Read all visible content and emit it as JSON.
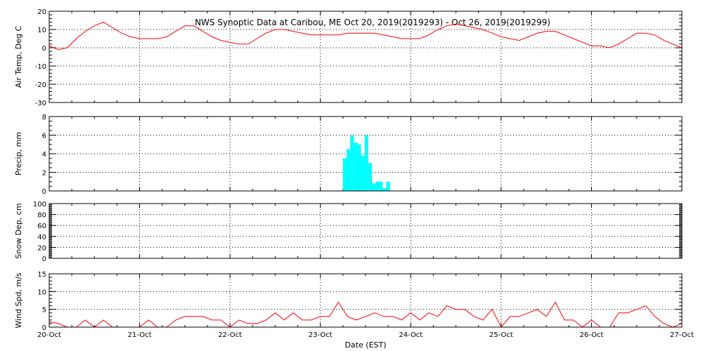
{
  "title": "NWS Synoptic Data at Caribou, ME   Oct 20, 2019(2019293) - Oct 26, 2019(2019299)",
  "xlabel": "Date (EST)",
  "x_tick_labels": [
    "20-Oct",
    "21-Oct",
    "22-Oct",
    "23-Oct",
    "24-Oct",
    "25-Oct",
    "26-Oct",
    "27-Oct"
  ],
  "colors": {
    "line": "#ff0000",
    "bar": "#00ffff",
    "grid": "#000000"
  },
  "chart_data": [
    {
      "type": "line",
      "name": "air-temp",
      "ylabel": "Air Temp, Deg C",
      "ylim": [
        -30,
        20
      ],
      "yticks": [
        -30,
        -20,
        -10,
        0,
        10,
        20
      ],
      "xlim": [
        0,
        7
      ],
      "x": [
        0,
        0.1,
        0.2,
        0.3,
        0.4,
        0.5,
        0.6,
        0.7,
        0.8,
        0.9,
        1.0,
        1.1,
        1.2,
        1.3,
        1.4,
        1.5,
        1.6,
        1.7,
        1.8,
        1.9,
        2.0,
        2.1,
        2.2,
        2.3,
        2.4,
        2.5,
        2.6,
        2.7,
        2.8,
        2.9,
        3.0,
        3.1,
        3.2,
        3.3,
        3.4,
        3.5,
        3.6,
        3.7,
        3.8,
        3.9,
        4.0,
        4.1,
        4.2,
        4.3,
        4.4,
        4.5,
        4.6,
        4.7,
        4.8,
        4.9,
        5.0,
        5.1,
        5.2,
        5.3,
        5.4,
        5.5,
        5.6,
        5.7,
        5.8,
        5.9,
        6.0,
        6.1,
        6.2,
        6.3,
        6.4,
        6.5,
        6.6,
        6.7,
        6.8,
        6.9,
        7.0
      ],
      "y": [
        1,
        -1,
        0,
        5,
        9,
        12,
        14,
        11,
        8,
        6,
        5,
        5,
        5,
        6,
        9,
        12,
        12,
        9,
        6,
        4,
        3,
        2,
        2,
        5,
        8,
        10,
        10,
        9,
        8,
        7,
        7,
        7,
        7,
        8,
        8,
        8,
        8,
        7,
        6,
        5,
        5,
        5,
        7,
        10,
        12,
        13,
        12,
        11,
        10,
        8,
        6,
        5,
        4,
        6,
        8,
        9,
        9,
        7,
        5,
        3,
        1,
        1,
        0,
        2,
        5,
        8,
        8,
        7,
        4,
        2,
        0
      ]
    },
    {
      "type": "bar",
      "name": "precip",
      "ylabel": "Precip, mm",
      "ylim": [
        0,
        8
      ],
      "yticks": [
        0,
        2,
        4,
        6,
        8
      ],
      "xlim": [
        0,
        7
      ],
      "bar_width": 0.04,
      "x": [
        3.25,
        3.29,
        3.33,
        3.37,
        3.41,
        3.45,
        3.49,
        3.53,
        3.57,
        3.61,
        3.65,
        3.69,
        3.73,
        3.77
      ],
      "values": [
        3.5,
        4.5,
        6,
        5.2,
        5,
        3.8,
        6,
        3,
        0.8,
        1,
        1,
        0.3,
        1,
        0
      ]
    },
    {
      "type": "line",
      "name": "snow-depth",
      "ylabel": "Snow Dep, cm",
      "ylim": [
        0,
        100
      ],
      "yticks": [
        0,
        20,
        40,
        60,
        80,
        100
      ],
      "xlim": [
        0,
        7
      ],
      "x": [],
      "y": []
    },
    {
      "type": "line",
      "name": "wind-speed",
      "ylabel": "Wind Spd, m/s",
      "ylim": [
        0,
        15
      ],
      "yticks": [
        0,
        5,
        10,
        15
      ],
      "xlim": [
        0,
        7
      ],
      "x": [
        0,
        0.1,
        0.2,
        0.3,
        0.4,
        0.5,
        0.6,
        0.7,
        0.8,
        0.9,
        1.0,
        1.1,
        1.2,
        1.3,
        1.4,
        1.5,
        1.6,
        1.7,
        1.8,
        1.9,
        2.0,
        2.1,
        2.2,
        2.3,
        2.4,
        2.5,
        2.6,
        2.7,
        2.8,
        2.9,
        3.0,
        3.1,
        3.2,
        3.3,
        3.4,
        3.5,
        3.6,
        3.7,
        3.8,
        3.9,
        4.0,
        4.1,
        4.2,
        4.3,
        4.4,
        4.5,
        4.6,
        4.7,
        4.8,
        4.9,
        5.0,
        5.1,
        5.2,
        5.3,
        5.4,
        5.5,
        5.6,
        5.7,
        5.8,
        5.9,
        6.0,
        6.1,
        6.2,
        6.3,
        6.4,
        6.5,
        6.6,
        6.7,
        6.8,
        6.9,
        7.0
      ],
      "y": [
        1.5,
        1,
        0,
        0,
        2,
        0,
        2,
        0,
        0,
        0,
        0,
        2,
        0,
        0,
        2,
        3,
        3,
        3,
        2,
        2,
        0,
        2,
        1,
        1,
        2,
        4,
        2,
        4,
        2,
        2,
        3,
        3,
        7,
        3,
        2,
        3,
        4,
        3,
        3,
        2,
        4,
        2,
        4,
        3,
        6,
        5,
        5,
        3,
        2,
        5,
        0,
        3,
        3,
        4,
        5,
        3,
        7,
        2,
        2,
        0,
        2,
        0,
        0,
        4,
        4,
        5,
        6,
        3,
        1,
        0,
        1
      ]
    }
  ]
}
